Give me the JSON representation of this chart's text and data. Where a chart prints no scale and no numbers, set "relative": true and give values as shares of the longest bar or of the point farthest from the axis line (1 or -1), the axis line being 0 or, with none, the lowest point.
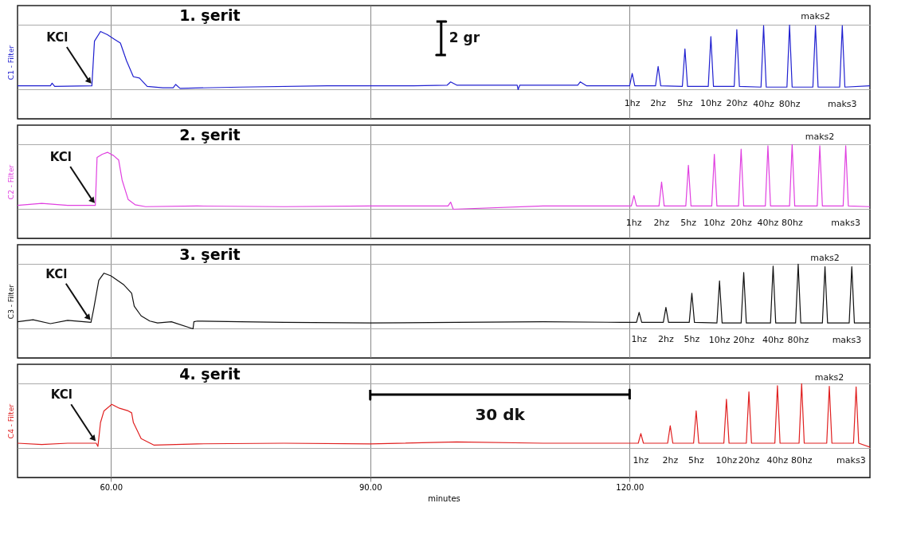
{
  "chart_data": [
    {
      "type": "line",
      "title": "1. şerit",
      "ylabel": "C1 - Filter",
      "relative": true,
      "grid": true,
      "tick_labels": false,
      "xlim": [
        49.2,
        147.8
      ],
      "xticks": [
        {
          "value": 60,
          "label": null
        },
        {
          "value": 90,
          "label": null
        },
        {
          "value": 120,
          "label": null
        }
      ],
      "series": [
        {
          "color": "#2020d0",
          "x": [
            49.2,
            53.0,
            53.2,
            53.5,
            57.8,
            58.1,
            58.8,
            59.6,
            60.4,
            61.1,
            61.8,
            62.6,
            63.3,
            64.2,
            66.0,
            67.2,
            67.5,
            68.0,
            75.0,
            85.0,
            95.0,
            98.9,
            99.3,
            100.0,
            107.0,
            107.1,
            107.3,
            114.0,
            114.3,
            115.0,
            120.0,
            120.3,
            120.6,
            123.0,
            123.3,
            123.6,
            126.1,
            126.4,
            126.7,
            129.1,
            129.4,
            129.7,
            132.1,
            132.4,
            132.7,
            135.2,
            135.5,
            135.8,
            138.2,
            138.5,
            138.8,
            141.2,
            141.5,
            141.8,
            144.3,
            144.6,
            144.9,
            147.8
          ],
          "values": [
            0.06,
            0.06,
            0.1,
            0.05,
            0.06,
            0.75,
            0.9,
            0.85,
            0.78,
            0.72,
            0.45,
            0.2,
            0.18,
            0.05,
            0.03,
            0.03,
            0.08,
            0.02,
            0.04,
            0.06,
            0.06,
            0.07,
            0.12,
            0.07,
            0.07,
            0.0,
            0.07,
            0.07,
            0.12,
            0.06,
            0.06,
            0.25,
            0.06,
            0.06,
            0.36,
            0.06,
            0.05,
            0.63,
            0.05,
            0.05,
            0.82,
            0.05,
            0.05,
            0.93,
            0.05,
            0.04,
            0.99,
            0.04,
            0.04,
            1.0,
            0.04,
            0.04,
            0.99,
            0.04,
            0.04,
            0.99,
            0.04,
            0.06
          ]
        }
      ],
      "annotations": [
        {
          "text": "KCl",
          "x": 57.8,
          "y": 0.06
        },
        "2 gr",
        {
          "text": "1hz",
          "x": 120.3,
          "y": 0.06
        },
        {
          "text": "2hz",
          "x": 123.3,
          "y": 0.06
        },
        {
          "text": "5hz",
          "x": 126.4,
          "y": 0.05
        },
        {
          "text": "10hz",
          "x": 129.4,
          "y": 0.05
        },
        {
          "text": "20hz",
          "x": 132.4,
          "y": 0.05
        },
        {
          "text": "40hz",
          "x": 135.5,
          "y": 0.04
        },
        {
          "text": "80hz",
          "x": 138.5,
          "y": 0.04
        },
        {
          "text": "maks2",
          "x": 141.5,
          "y": 0.99
        },
        {
          "text": "maks3",
          "x": 144.6,
          "y": 0.04
        }
      ]
    },
    {
      "type": "line",
      "title": "2. şerit",
      "ylabel": "C2 - Filter",
      "relative": true,
      "grid": true,
      "tick_labels": false,
      "xlim": [
        49.2,
        147.8
      ],
      "xticks": [
        {
          "value": 60,
          "label": null
        },
        {
          "value": 90,
          "label": null
        },
        {
          "value": 120,
          "label": null
        }
      ],
      "series": [
        {
          "color": "#e040e0",
          "x": [
            49.2,
            52.0,
            55.0,
            58.2,
            58.4,
            59.0,
            59.6,
            60.3,
            60.9,
            61.3,
            62.0,
            62.8,
            64.0,
            70.0,
            80.0,
            90.0,
            99.0,
            99.3,
            99.6,
            110.0,
            120.2,
            120.5,
            120.8,
            123.4,
            123.7,
            124.0,
            126.5,
            126.8,
            127.1,
            129.5,
            129.8,
            130.1,
            132.6,
            132.9,
            133.2,
            135.7,
            136.0,
            136.3,
            138.5,
            138.8,
            139.1,
            141.7,
            142.0,
            142.3,
            144.7,
            145.0,
            145.3,
            147.8
          ],
          "values": [
            0.06,
            0.09,
            0.06,
            0.06,
            0.8,
            0.85,
            0.88,
            0.83,
            0.76,
            0.45,
            0.15,
            0.07,
            0.04,
            0.05,
            0.04,
            0.05,
            0.05,
            0.11,
            0.0,
            0.05,
            0.05,
            0.21,
            0.05,
            0.05,
            0.42,
            0.05,
            0.05,
            0.68,
            0.05,
            0.05,
            0.85,
            0.05,
            0.05,
            0.93,
            0.05,
            0.05,
            0.98,
            0.05,
            0.05,
            1.0,
            0.05,
            0.05,
            0.98,
            0.05,
            0.05,
            0.98,
            0.05,
            0.04
          ]
        }
      ],
      "annotations": [
        {
          "text": "KCl",
          "x": 58.2,
          "y": 0.06
        },
        {
          "text": "1hz",
          "x": 120.5,
          "y": 0.05
        },
        {
          "text": "2hz",
          "x": 123.7,
          "y": 0.05
        },
        {
          "text": "5hz",
          "x": 126.8,
          "y": 0.05
        },
        {
          "text": "10hz",
          "x": 129.8,
          "y": 0.05
        },
        {
          "text": "20hz",
          "x": 132.9,
          "y": 0.05
        },
        {
          "text": "40hz",
          "x": 136.0,
          "y": 0.05
        },
        {
          "text": "80hz",
          "x": 138.8,
          "y": 0.05
        },
        {
          "text": "maks2",
          "x": 142.0,
          "y": 0.98
        },
        {
          "text": "maks3",
          "x": 145.0,
          "y": 0.05
        }
      ]
    },
    {
      "type": "line",
      "title": "3. şerit",
      "ylabel": "C3 - Filter",
      "relative": true,
      "grid": true,
      "tick_labels": false,
      "xlim": [
        49.2,
        147.8
      ],
      "xticks": [
        {
          "value": 60,
          "label": null
        },
        {
          "value": 90,
          "label": null
        },
        {
          "value": 120,
          "label": null
        }
      ],
      "series": [
        {
          "color": "#111111",
          "x": [
            49.2,
            51.0,
            53.0,
            55.0,
            57.7,
            58.0,
            58.6,
            59.2,
            60.0,
            61.5,
            62.4,
            62.7,
            63.5,
            64.5,
            65.4,
            67.0,
            69.5,
            69.6,
            70.0,
            75.0,
            80.0,
            90.0,
            100.0,
            110.0,
            119.0,
            120.8,
            121.1,
            121.4,
            123.9,
            124.2,
            124.5,
            126.9,
            127.2,
            127.5,
            130.1,
            130.4,
            130.7,
            132.9,
            133.2,
            133.5,
            136.3,
            136.6,
            136.9,
            139.2,
            139.5,
            139.8,
            142.3,
            142.6,
            142.9,
            145.4,
            145.7,
            146.0,
            147.8
          ],
          "values": [
            0.11,
            0.14,
            0.08,
            0.13,
            0.1,
            0.3,
            0.75,
            0.86,
            0.82,
            0.68,
            0.55,
            0.35,
            0.2,
            0.12,
            0.09,
            0.11,
            0.0,
            0.11,
            0.12,
            0.11,
            0.1,
            0.09,
            0.1,
            0.11,
            0.1,
            0.1,
            0.255,
            0.1,
            0.1,
            0.33,
            0.1,
            0.1,
            0.55,
            0.1,
            0.09,
            0.74,
            0.09,
            0.09,
            0.87,
            0.09,
            0.09,
            0.97,
            0.09,
            0.09,
            1.0,
            0.09,
            0.09,
            0.96,
            0.09,
            0.09,
            0.96,
            0.09,
            0.09
          ]
        }
      ],
      "annotations": [
        {
          "text": "KCl",
          "x": 57.7,
          "y": 0.1
        },
        {
          "text": "1hz",
          "x": 121.1,
          "y": 0.1
        },
        {
          "text": "2hz",
          "x": 124.2,
          "y": 0.1
        },
        {
          "text": "5hz",
          "x": 127.2,
          "y": 0.1
        },
        {
          "text": "10hz",
          "x": 130.4,
          "y": 0.09
        },
        {
          "text": "20hz",
          "x": 133.2,
          "y": 0.09
        },
        {
          "text": "40hz",
          "x": 136.6,
          "y": 0.09
        },
        {
          "text": "80hz",
          "x": 139.5,
          "y": 0.09
        },
        {
          "text": "maks2",
          "x": 142.6,
          "y": 0.96
        },
        {
          "text": "maks3",
          "x": 145.7,
          "y": 0.09
        }
      ]
    },
    {
      "type": "line",
      "title": "4. şerit",
      "ylabel": "C4 - Filter",
      "xlabel": "minutes",
      "relative": true,
      "grid": true,
      "tick_labels": "x",
      "xlim": [
        49.2,
        147.8
      ],
      "xticks": [
        {
          "value": 60,
          "label": "60.00"
        },
        {
          "value": 90,
          "label": "90.00"
        },
        {
          "value": 120,
          "label": "120.00"
        }
      ],
      "series": [
        {
          "color": "#e02020",
          "x": [
            49.2,
            52.0,
            55.0,
            58.3,
            58.5,
            58.8,
            59.2,
            60.1,
            61.0,
            62.0,
            62.4,
            62.6,
            63.5,
            65.0,
            70.0,
            80.0,
            90.0,
            100.0,
            110.0,
            119.0,
            121.0,
            121.3,
            121.6,
            124.4,
            124.7,
            125.0,
            127.4,
            127.7,
            128.0,
            130.9,
            131.2,
            131.5,
            133.5,
            133.8,
            134.1,
            136.8,
            137.1,
            137.4,
            139.6,
            139.9,
            140.2,
            142.8,
            143.1,
            143.4,
            145.9,
            146.2,
            146.5,
            147.8
          ],
          "values": [
            0.08,
            0.06,
            0.08,
            0.08,
            0.03,
            0.4,
            0.58,
            0.68,
            0.62,
            0.58,
            0.55,
            0.4,
            0.15,
            0.05,
            0.07,
            0.08,
            0.07,
            0.1,
            0.08,
            0.08,
            0.08,
            0.23,
            0.08,
            0.08,
            0.35,
            0.08,
            0.08,
            0.58,
            0.08,
            0.08,
            0.76,
            0.08,
            0.08,
            0.875,
            0.08,
            0.08,
            0.97,
            0.08,
            0.08,
            1.0,
            0.08,
            0.08,
            0.96,
            0.08,
            0.08,
            0.95,
            0.08,
            0.02
          ]
        }
      ],
      "annotations": [
        {
          "text": "KCl",
          "x": 58.3,
          "y": 0.08
        },
        "30 dk",
        {
          "text": "1hz",
          "x": 121.3,
          "y": 0.08
        },
        {
          "text": "2hz",
          "x": 124.7,
          "y": 0.08
        },
        {
          "text": "5hz",
          "x": 127.7,
          "y": 0.08
        },
        {
          "text": "10hz",
          "x": 131.2,
          "y": 0.08
        },
        {
          "text": "20hz",
          "x": 133.8,
          "y": 0.08
        },
        {
          "text": "40hz",
          "x": 137.1,
          "y": 0.08
        },
        {
          "text": "80hz",
          "x": 139.9,
          "y": 0.08
        },
        {
          "text": "maks2",
          "x": 143.1,
          "y": 0.96
        },
        {
          "text": "maks3",
          "x": 146.2,
          "y": 0.08
        }
      ]
    }
  ]
}
